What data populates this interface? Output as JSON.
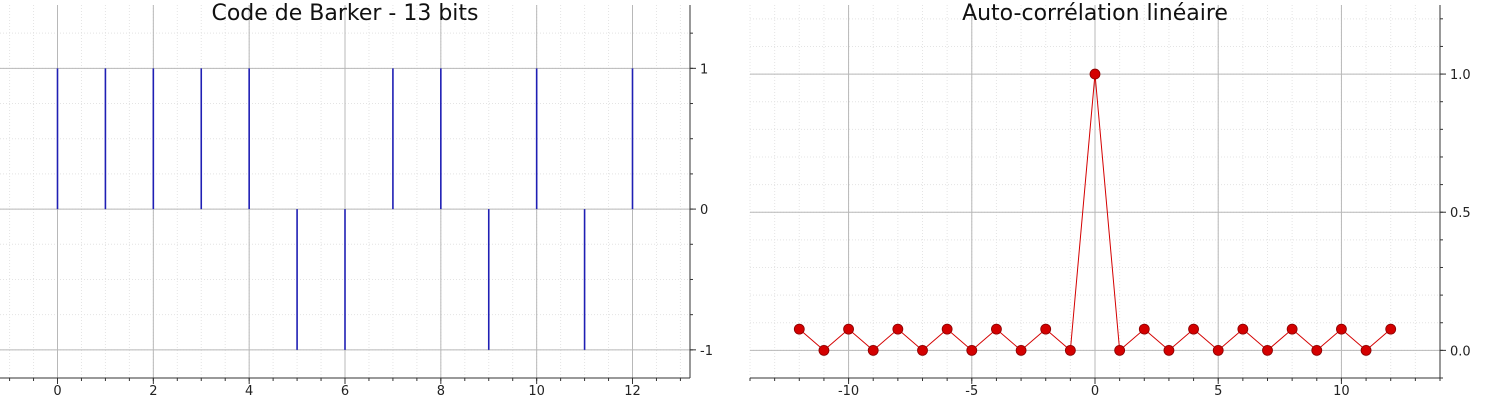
{
  "chart_data": [
    {
      "type": "stem",
      "title": "Code de Barker - 13 bits",
      "xlabel": "",
      "ylabel": "",
      "x": [
        0,
        1,
        2,
        3,
        4,
        5,
        6,
        7,
        8,
        9,
        10,
        11,
        12
      ],
      "values": [
        1,
        1,
        1,
        1,
        1,
        -1,
        -1,
        1,
        1,
        -1,
        1,
        -1,
        1
      ],
      "xlim": [
        -1.2,
        13.2
      ],
      "ylim": [
        -1.2,
        1.45
      ],
      "x_ticks": [
        0,
        2,
        4,
        6,
        8,
        10,
        12
      ],
      "x_tick_labels": [
        "0",
        "2",
        "4",
        "6",
        "8",
        "10",
        "12"
      ],
      "y_ticks": [
        -1,
        0,
        1
      ],
      "y_tick_labels": [
        "-1",
        "0",
        "1"
      ],
      "y_axis_side": "right",
      "grid": true,
      "minor_grid": true,
      "color": "#1f1fb4"
    },
    {
      "type": "line",
      "title": "Auto-corrélation linéaire",
      "xlabel": "",
      "ylabel": "",
      "x": [
        -12,
        -11,
        -10,
        -9,
        -8,
        -7,
        -6,
        -5,
        -4,
        -3,
        -2,
        -1,
        0,
        1,
        2,
        3,
        4,
        5,
        6,
        7,
        8,
        9,
        10,
        11,
        12
      ],
      "values": [
        0.0769,
        0,
        0.0769,
        0,
        0.0769,
        0,
        0.0769,
        0,
        0.0769,
        0,
        0.0769,
        0,
        1,
        0,
        0.0769,
        0,
        0.0769,
        0,
        0.0769,
        0,
        0.0769,
        0,
        0.0769,
        0,
        0.0769
      ],
      "xlim": [
        -14.0,
        14.0
      ],
      "ylim": [
        -0.1,
        1.25
      ],
      "x_ticks": [
        -10,
        -5,
        0,
        5,
        10
      ],
      "x_tick_labels": [
        "-10",
        "-5",
        "0",
        "5",
        "10"
      ],
      "y_ticks": [
        0,
        0.5,
        1
      ],
      "y_tick_labels": [
        "0.0",
        "0.5",
        "1.0"
      ],
      "y_axis_side": "right",
      "markers": true,
      "grid": true,
      "minor_grid": true,
      "color": "#d40000"
    }
  ]
}
